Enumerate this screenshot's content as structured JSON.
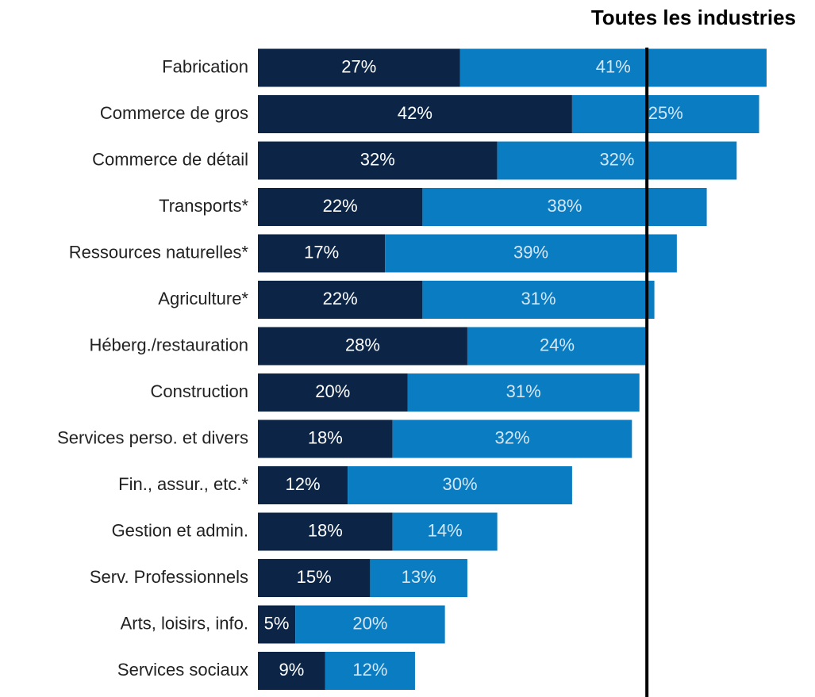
{
  "chart_data": {
    "type": "stacked_barh",
    "categories": [
      "Fabrication",
      "Commerce de gros",
      "Commerce de détail",
      "Transports*",
      "Ressources naturelles*",
      "Agriculture*",
      "Héberg./restauration",
      "Construction",
      "Services perso. et divers",
      "Fin., assur., etc.*",
      "Gestion et admin.",
      "Serv. Professionnels",
      "Arts, loisirs, info.",
      "Services sociaux"
    ],
    "series": [
      {
        "color": "#0c2546",
        "label_color": "#ffffff",
        "values": [
          27,
          42,
          32,
          22,
          17,
          22,
          28,
          20,
          18,
          12,
          18,
          15,
          5,
          9
        ],
        "value_labels": [
          "27%",
          "42%",
          "32%",
          "22%",
          "17%",
          "22%",
          "28%",
          "20%",
          "18%",
          "12%",
          "18%",
          "15%",
          "5%",
          "9%"
        ]
      },
      {
        "color": "#0a7cc2",
        "label_color": "#d4e6f3",
        "values": [
          41,
          25,
          32,
          38,
          39,
          31,
          24,
          31,
          32,
          30,
          14,
          13,
          20,
          12
        ],
        "value_labels": [
          "41%",
          "25%",
          "32%",
          "38%",
          "39%",
          "31%",
          "24%",
          "31%",
          "32%",
          "30%",
          "14%",
          "13%",
          "20%",
          "12%"
        ]
      }
    ],
    "reference_line": {
      "label": "Toutes les industries",
      "value": 52,
      "color": "#000000"
    }
  }
}
